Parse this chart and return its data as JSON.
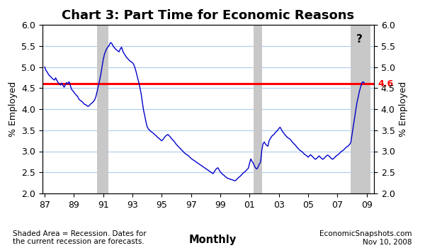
{
  "title": "Chart 3: Part Time for Economic Reasons",
  "ylabel_left": "% Employed",
  "ylabel_right": "% Employed",
  "xlabel": "Monthly",
  "ylim": [
    2.0,
    6.0
  ],
  "yticks": [
    2.0,
    2.5,
    3.0,
    3.5,
    4.0,
    4.5,
    5.0,
    5.5,
    6.0
  ],
  "xtick_labels": [
    "87",
    "89",
    "91",
    "93",
    "95",
    "97",
    "99",
    "01",
    "03",
    "05",
    "07",
    "09"
  ],
  "xtick_positions": [
    1987,
    1989,
    1991,
    1993,
    1995,
    1997,
    1999,
    2001,
    2003,
    2005,
    2007,
    2009
  ],
  "xlim": [
    1986.85,
    2009.5
  ],
  "reference_line_y": 4.6,
  "reference_line_color": "#ff0000",
  "line_color": "#0000cc",
  "recession_bands": [
    {
      "start": 1990.583,
      "end": 1991.333
    },
    {
      "start": 2001.25,
      "end": 2001.833
    },
    {
      "start": 2007.917,
      "end": 2009.25
    }
  ],
  "recession_color": "#c8c8c8",
  "question_mark_x": 2008.5,
  "question_mark_y": 5.78,
  "footer_left": "Shaded Area = Recession. Dates for\nthe current recession are forecasts.",
  "footer_center": "Monthly",
  "footer_right": "EconomicSnapshots.com\nNov 10, 2008",
  "background_color": "#ffffff",
  "grid_color": "#aaccee",
  "title_fontsize": 13,
  "axis_label_fontsize": 9,
  "tick_fontsize": 9,
  "series": [
    [
      1987.0,
      5.0
    ],
    [
      1987.083,
      4.92
    ],
    [
      1987.167,
      4.88
    ],
    [
      1987.25,
      4.83
    ],
    [
      1987.333,
      4.79
    ],
    [
      1987.417,
      4.77
    ],
    [
      1987.5,
      4.73
    ],
    [
      1987.583,
      4.71
    ],
    [
      1987.667,
      4.69
    ],
    [
      1987.75,
      4.74
    ],
    [
      1987.833,
      4.68
    ],
    [
      1987.917,
      4.63
    ],
    [
      1988.0,
      4.6
    ],
    [
      1988.083,
      4.57
    ],
    [
      1988.167,
      4.62
    ],
    [
      1988.25,
      4.56
    ],
    [
      1988.333,
      4.52
    ],
    [
      1988.417,
      4.58
    ],
    [
      1988.5,
      4.63
    ],
    [
      1988.583,
      4.6
    ],
    [
      1988.667,
      4.65
    ],
    [
      1988.75,
      4.56
    ],
    [
      1988.833,
      4.47
    ],
    [
      1988.917,
      4.44
    ],
    [
      1989.0,
      4.4
    ],
    [
      1989.083,
      4.36
    ],
    [
      1989.167,
      4.33
    ],
    [
      1989.25,
      4.3
    ],
    [
      1989.333,
      4.24
    ],
    [
      1989.417,
      4.21
    ],
    [
      1989.5,
      4.19
    ],
    [
      1989.583,
      4.17
    ],
    [
      1989.667,
      4.13
    ],
    [
      1989.75,
      4.11
    ],
    [
      1989.833,
      4.1
    ],
    [
      1989.917,
      4.07
    ],
    [
      1990.0,
      4.07
    ],
    [
      1990.083,
      4.1
    ],
    [
      1990.167,
      4.13
    ],
    [
      1990.25,
      4.15
    ],
    [
      1990.333,
      4.18
    ],
    [
      1990.417,
      4.22
    ],
    [
      1990.5,
      4.3
    ],
    [
      1990.583,
      4.42
    ],
    [
      1990.667,
      4.55
    ],
    [
      1990.75,
      4.68
    ],
    [
      1990.833,
      4.82
    ],
    [
      1990.917,
      5.0
    ],
    [
      1991.0,
      5.18
    ],
    [
      1991.083,
      5.3
    ],
    [
      1991.167,
      5.38
    ],
    [
      1991.25,
      5.44
    ],
    [
      1991.333,
      5.48
    ],
    [
      1991.417,
      5.52
    ],
    [
      1991.5,
      5.58
    ],
    [
      1991.583,
      5.56
    ],
    [
      1991.667,
      5.5
    ],
    [
      1991.75,
      5.46
    ],
    [
      1991.833,
      5.43
    ],
    [
      1991.917,
      5.4
    ],
    [
      1992.0,
      5.38
    ],
    [
      1992.083,
      5.36
    ],
    [
      1992.167,
      5.43
    ],
    [
      1992.25,
      5.47
    ],
    [
      1992.333,
      5.38
    ],
    [
      1992.417,
      5.32
    ],
    [
      1992.5,
      5.28
    ],
    [
      1992.583,
      5.23
    ],
    [
      1992.667,
      5.2
    ],
    [
      1992.75,
      5.17
    ],
    [
      1992.833,
      5.14
    ],
    [
      1992.917,
      5.12
    ],
    [
      1993.0,
      5.1
    ],
    [
      1993.083,
      5.06
    ],
    [
      1993.167,
      4.98
    ],
    [
      1993.25,
      4.88
    ],
    [
      1993.333,
      4.76
    ],
    [
      1993.417,
      4.65
    ],
    [
      1993.5,
      4.52
    ],
    [
      1993.583,
      4.38
    ],
    [
      1993.667,
      4.18
    ],
    [
      1993.75,
      3.98
    ],
    [
      1993.833,
      3.85
    ],
    [
      1993.917,
      3.7
    ],
    [
      1994.0,
      3.58
    ],
    [
      1994.083,
      3.53
    ],
    [
      1994.167,
      3.5
    ],
    [
      1994.25,
      3.47
    ],
    [
      1994.333,
      3.45
    ],
    [
      1994.417,
      3.43
    ],
    [
      1994.5,
      3.4
    ],
    [
      1994.583,
      3.38
    ],
    [
      1994.667,
      3.35
    ],
    [
      1994.75,
      3.32
    ],
    [
      1994.833,
      3.3
    ],
    [
      1994.917,
      3.27
    ],
    [
      1995.0,
      3.25
    ],
    [
      1995.083,
      3.28
    ],
    [
      1995.167,
      3.32
    ],
    [
      1995.25,
      3.36
    ],
    [
      1995.333,
      3.38
    ],
    [
      1995.417,
      3.4
    ],
    [
      1995.5,
      3.37
    ],
    [
      1995.583,
      3.34
    ],
    [
      1995.667,
      3.3
    ],
    [
      1995.75,
      3.27
    ],
    [
      1995.833,
      3.24
    ],
    [
      1995.917,
      3.2
    ],
    [
      1996.0,
      3.16
    ],
    [
      1996.083,
      3.13
    ],
    [
      1996.167,
      3.1
    ],
    [
      1996.25,
      3.07
    ],
    [
      1996.333,
      3.04
    ],
    [
      1996.417,
      3.01
    ],
    [
      1996.5,
      2.98
    ],
    [
      1996.583,
      2.95
    ],
    [
      1996.667,
      2.93
    ],
    [
      1996.75,
      2.91
    ],
    [
      1996.833,
      2.89
    ],
    [
      1996.917,
      2.86
    ],
    [
      1997.0,
      2.83
    ],
    [
      1997.083,
      2.81
    ],
    [
      1997.167,
      2.79
    ],
    [
      1997.25,
      2.77
    ],
    [
      1997.333,
      2.75
    ],
    [
      1997.417,
      2.73
    ],
    [
      1997.5,
      2.71
    ],
    [
      1997.583,
      2.69
    ],
    [
      1997.667,
      2.67
    ],
    [
      1997.75,
      2.65
    ],
    [
      1997.833,
      2.63
    ],
    [
      1997.917,
      2.61
    ],
    [
      1998.0,
      2.59
    ],
    [
      1998.083,
      2.57
    ],
    [
      1998.167,
      2.55
    ],
    [
      1998.25,
      2.53
    ],
    [
      1998.333,
      2.51
    ],
    [
      1998.417,
      2.49
    ],
    [
      1998.5,
      2.47
    ],
    [
      1998.583,
      2.51
    ],
    [
      1998.667,
      2.56
    ],
    [
      1998.75,
      2.59
    ],
    [
      1998.833,
      2.61
    ],
    [
      1998.917,
      2.56
    ],
    [
      1999.0,
      2.51
    ],
    [
      1999.083,
      2.48
    ],
    [
      1999.167,
      2.45
    ],
    [
      1999.25,
      2.43
    ],
    [
      1999.333,
      2.4
    ],
    [
      1999.417,
      2.38
    ],
    [
      1999.5,
      2.36
    ],
    [
      1999.583,
      2.35
    ],
    [
      1999.667,
      2.34
    ],
    [
      1999.75,
      2.33
    ],
    [
      1999.833,
      2.32
    ],
    [
      1999.917,
      2.31
    ],
    [
      2000.0,
      2.3
    ],
    [
      2000.083,
      2.32
    ],
    [
      2000.167,
      2.35
    ],
    [
      2000.25,
      2.38
    ],
    [
      2000.333,
      2.4
    ],
    [
      2000.417,
      2.43
    ],
    [
      2000.5,
      2.46
    ],
    [
      2000.583,
      2.49
    ],
    [
      2000.667,
      2.51
    ],
    [
      2000.75,
      2.54
    ],
    [
      2000.833,
      2.57
    ],
    [
      2000.917,
      2.6
    ],
    [
      2001.0,
      2.72
    ],
    [
      2001.083,
      2.82
    ],
    [
      2001.167,
      2.76
    ],
    [
      2001.25,
      2.72
    ],
    [
      2001.333,
      2.65
    ],
    [
      2001.417,
      2.6
    ],
    [
      2001.5,
      2.58
    ],
    [
      2001.583,
      2.63
    ],
    [
      2001.667,
      2.7
    ],
    [
      2001.75,
      2.74
    ],
    [
      2001.833,
      3.02
    ],
    [
      2001.917,
      3.18
    ],
    [
      2002.0,
      3.22
    ],
    [
      2002.083,
      3.17
    ],
    [
      2002.167,
      3.14
    ],
    [
      2002.25,
      3.12
    ],
    [
      2002.333,
      3.25
    ],
    [
      2002.417,
      3.3
    ],
    [
      2002.5,
      3.35
    ],
    [
      2002.583,
      3.38
    ],
    [
      2002.667,
      3.4
    ],
    [
      2002.75,
      3.44
    ],
    [
      2002.833,
      3.47
    ],
    [
      2002.917,
      3.5
    ],
    [
      2003.0,
      3.54
    ],
    [
      2003.083,
      3.57
    ],
    [
      2003.167,
      3.52
    ],
    [
      2003.25,
      3.47
    ],
    [
      2003.333,
      3.43
    ],
    [
      2003.417,
      3.39
    ],
    [
      2003.5,
      3.36
    ],
    [
      2003.583,
      3.33
    ],
    [
      2003.667,
      3.31
    ],
    [
      2003.75,
      3.29
    ],
    [
      2003.833,
      3.26
    ],
    [
      2003.917,
      3.22
    ],
    [
      2004.0,
      3.19
    ],
    [
      2004.083,
      3.16
    ],
    [
      2004.167,
      3.13
    ],
    [
      2004.25,
      3.09
    ],
    [
      2004.333,
      3.06
    ],
    [
      2004.417,
      3.03
    ],
    [
      2004.5,
      3.01
    ],
    [
      2004.583,
      2.99
    ],
    [
      2004.667,
      2.96
    ],
    [
      2004.75,
      2.93
    ],
    [
      2004.833,
      2.91
    ],
    [
      2004.917,
      2.89
    ],
    [
      2005.0,
      2.86
    ],
    [
      2005.083,
      2.89
    ],
    [
      2005.167,
      2.92
    ],
    [
      2005.25,
      2.89
    ],
    [
      2005.333,
      2.86
    ],
    [
      2005.417,
      2.83
    ],
    [
      2005.5,
      2.81
    ],
    [
      2005.583,
      2.83
    ],
    [
      2005.667,
      2.86
    ],
    [
      2005.75,
      2.89
    ],
    [
      2005.833,
      2.86
    ],
    [
      2005.917,
      2.83
    ],
    [
      2006.0,
      2.81
    ],
    [
      2006.083,
      2.83
    ],
    [
      2006.167,
      2.86
    ],
    [
      2006.25,
      2.89
    ],
    [
      2006.333,
      2.91
    ],
    [
      2006.417,
      2.89
    ],
    [
      2006.5,
      2.86
    ],
    [
      2006.583,
      2.83
    ],
    [
      2006.667,
      2.81
    ],
    [
      2006.75,
      2.83
    ],
    [
      2006.833,
      2.86
    ],
    [
      2006.917,
      2.89
    ],
    [
      2007.0,
      2.91
    ],
    [
      2007.083,
      2.93
    ],
    [
      2007.167,
      2.96
    ],
    [
      2007.25,
      2.99
    ],
    [
      2007.333,
      3.01
    ],
    [
      2007.417,
      3.03
    ],
    [
      2007.5,
      3.06
    ],
    [
      2007.583,
      3.09
    ],
    [
      2007.667,
      3.11
    ],
    [
      2007.75,
      3.13
    ],
    [
      2007.833,
      3.16
    ],
    [
      2007.917,
      3.21
    ],
    [
      2008.0,
      3.4
    ],
    [
      2008.083,
      3.58
    ],
    [
      2008.167,
      3.78
    ],
    [
      2008.25,
      3.98
    ],
    [
      2008.333,
      4.15
    ],
    [
      2008.417,
      4.28
    ],
    [
      2008.5,
      4.42
    ],
    [
      2008.583,
      4.52
    ],
    [
      2008.667,
      4.62
    ],
    [
      2008.75,
      4.65
    ],
    [
      2008.833,
      4.62
    ]
  ]
}
